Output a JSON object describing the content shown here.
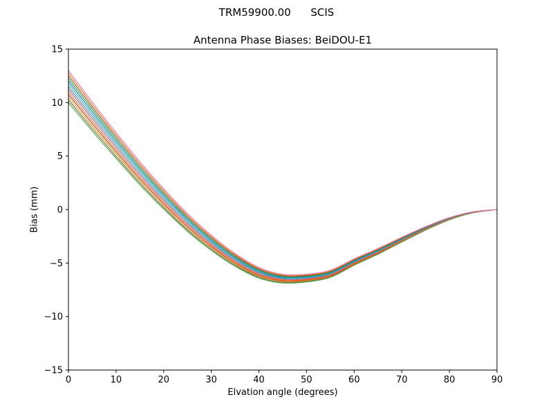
{
  "chart_data": {
    "type": "line",
    "suptitle": "TRM59900.00      SCIS",
    "title": "Antenna Phase Biases: BeiDOU-E1",
    "xlabel": "Elvation angle (degrees)",
    "ylabel": "Bias (mm)",
    "xlim": [
      0,
      90
    ],
    "ylim": [
      -15,
      15
    ],
    "grid": false,
    "legend_position": "none",
    "xticks": [
      0,
      10,
      20,
      30,
      40,
      50,
      60,
      70,
      80,
      90
    ],
    "xtick_labels": [
      "0",
      "10",
      "20",
      "30",
      "40",
      "50",
      "60",
      "70",
      "80",
      "90"
    ],
    "yticks": [
      -15,
      -10,
      -5,
      0,
      5,
      10,
      15
    ],
    "ytick_labels": [
      "−15",
      "−10",
      "−5",
      "0",
      "5",
      "10",
      "15"
    ],
    "axes_color": "#000000",
    "background_color": "#ffffff",
    "x": [
      0,
      5,
      10,
      15,
      20,
      25,
      30,
      35,
      40,
      45,
      50,
      55,
      60,
      65,
      70,
      75,
      80,
      85,
      90
    ],
    "series": [
      {
        "name": "curve-01",
        "color": "#2ca02c",
        "values": [
          10.0,
          7.35,
          4.8,
          2.32,
          0.06,
          -2.03,
          -3.81,
          -5.3,
          -6.4,
          -6.86,
          -6.76,
          -6.33,
          -5.2,
          -4.17,
          -3.03,
          -1.92,
          -0.96,
          -0.3,
          0.0
        ]
      },
      {
        "name": "curve-02",
        "color": "#8c564b",
        "values": [
          10.25,
          7.58,
          5.0,
          2.5,
          0.21,
          -1.89,
          -3.69,
          -5.2,
          -6.31,
          -6.79,
          -6.7,
          -6.28,
          -5.15,
          -4.13,
          -2.99,
          -1.89,
          -0.94,
          -0.29,
          0.0
        ]
      },
      {
        "name": "curve-03",
        "color": "#bcbd22",
        "values": [
          10.5,
          7.8,
          5.2,
          2.68,
          0.37,
          -1.75,
          -3.57,
          -5.1,
          -6.23,
          -6.72,
          -6.64,
          -6.22,
          -5.1,
          -4.08,
          -2.95,
          -1.86,
          -0.92,
          -0.28,
          0.0
        ]
      },
      {
        "name": "curve-04",
        "color": "#d62728",
        "values": [
          10.75,
          8.03,
          5.4,
          2.86,
          0.53,
          -1.61,
          -3.45,
          -5.0,
          -6.15,
          -6.65,
          -6.58,
          -6.17,
          -5.05,
          -4.04,
          -2.91,
          -1.83,
          -0.9,
          -0.27,
          0.0
        ]
      },
      {
        "name": "curve-05",
        "color": "#ff7f0e",
        "values": [
          11.0,
          8.25,
          5.6,
          3.04,
          0.69,
          -1.48,
          -3.34,
          -4.9,
          -6.07,
          -6.59,
          -6.52,
          -6.11,
          -5.0,
          -3.99,
          -2.88,
          -1.81,
          -0.89,
          -0.27,
          0.0
        ]
      },
      {
        "name": "curve-06",
        "color": "#9467bd",
        "values": [
          11.25,
          8.48,
          5.8,
          3.22,
          0.84,
          -1.34,
          -3.22,
          -4.8,
          -5.98,
          -6.52,
          -6.46,
          -6.06,
          -4.95,
          -3.95,
          -2.84,
          -1.78,
          -0.87,
          -0.26,
          0.0
        ]
      },
      {
        "name": "curve-07",
        "color": "#7f7f7f",
        "values": [
          11.5,
          8.7,
          6.0,
          3.4,
          1.0,
          -1.2,
          -3.1,
          -4.7,
          -5.9,
          -6.45,
          -6.4,
          -6.0,
          -4.9,
          -3.9,
          -2.8,
          -1.75,
          -0.85,
          -0.25,
          0.0
        ]
      },
      {
        "name": "curve-08",
        "color": "#17becf",
        "values": [
          11.75,
          8.93,
          6.2,
          3.58,
          1.16,
          -1.06,
          -2.98,
          -4.6,
          -5.82,
          -6.38,
          -6.34,
          -5.95,
          -4.85,
          -3.86,
          -2.76,
          -1.72,
          -0.83,
          -0.24,
          0.0
        ]
      },
      {
        "name": "curve-09",
        "color": "#1f77b4",
        "values": [
          12.0,
          9.15,
          6.4,
          3.76,
          1.32,
          -0.93,
          -2.87,
          -4.5,
          -5.74,
          -6.32,
          -6.28,
          -5.89,
          -4.8,
          -3.81,
          -2.73,
          -1.7,
          -0.82,
          -0.24,
          0.0
        ]
      },
      {
        "name": "curve-10",
        "color": "#2ca02c",
        "values": [
          12.25,
          9.38,
          6.6,
          3.94,
          1.47,
          -0.79,
          -2.75,
          -4.4,
          -5.65,
          -6.25,
          -6.22,
          -5.84,
          -4.75,
          -3.77,
          -2.69,
          -1.67,
          -0.8,
          -0.23,
          0.0
        ]
      },
      {
        "name": "curve-11",
        "color": "#8c564b",
        "values": [
          12.5,
          9.6,
          6.8,
          4.12,
          1.63,
          -0.65,
          -2.63,
          -4.3,
          -5.57,
          -6.18,
          -6.16,
          -5.78,
          -4.7,
          -3.72,
          -2.65,
          -1.64,
          -0.78,
          -0.22,
          0.0
        ]
      },
      {
        "name": "curve-12",
        "color": "#ff7f0e",
        "values": [
          12.75,
          9.83,
          7.0,
          4.3,
          1.79,
          -0.51,
          -2.51,
          -4.2,
          -5.49,
          -6.11,
          -6.1,
          -5.73,
          -4.65,
          -3.68,
          -2.61,
          -1.61,
          -0.76,
          -0.21,
          0.0
        ]
      },
      {
        "name": "curve-13",
        "color": "#e377c2",
        "values": [
          13.0,
          10.05,
          7.2,
          4.48,
          1.95,
          -0.38,
          -2.39,
          -4.1,
          -5.41,
          -6.05,
          -6.04,
          -5.67,
          -4.6,
          -3.63,
          -2.58,
          -1.59,
          -0.75,
          -0.21,
          0.0
        ]
      }
    ]
  }
}
